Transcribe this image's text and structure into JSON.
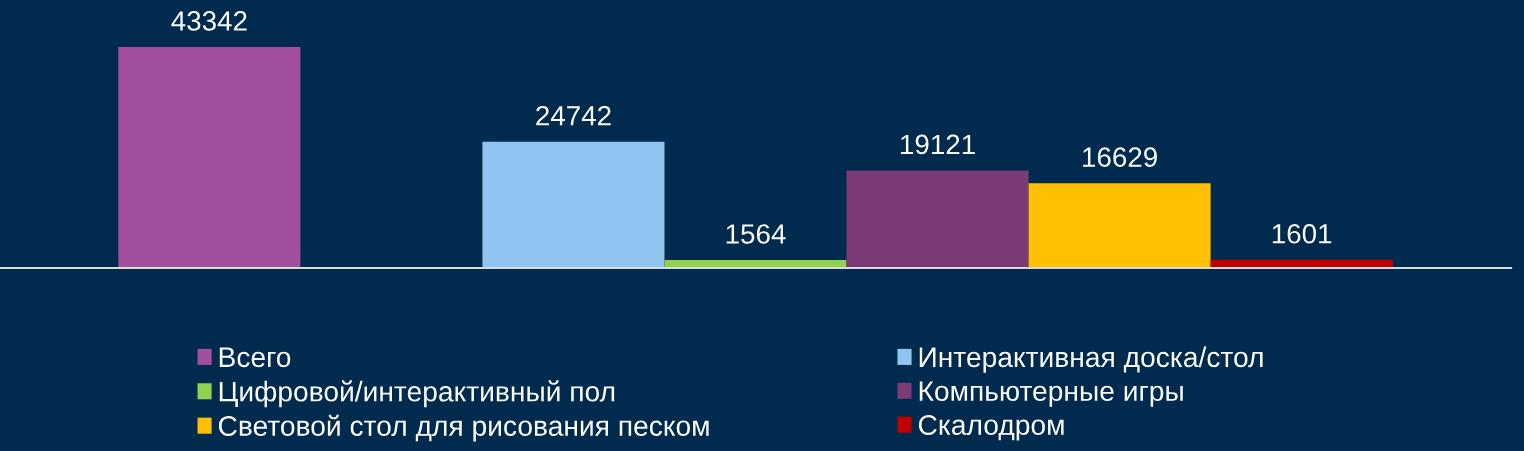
{
  "chart_data": {
    "type": "bar",
    "categories": [
      null
    ],
    "series": [
      {
        "name": "Всего",
        "color": "#a24f9e",
        "values": [
          43342
        ]
      },
      {
        "values": [
          null
        ]
      },
      {
        "name": "Интерактивная доска/стол",
        "color": "#92c4f2",
        "values": [
          24742
        ]
      },
      {
        "name": "Цифровой/интерактивный пол",
        "color": "#92d050",
        "values": [
          1564
        ]
      },
      {
        "name": "Компьютерные игры",
        "color": "#7a3b77",
        "values": [
          19121
        ]
      },
      {
        "name": "Световой стол для рисования песком",
        "color": "#ffc000",
        "values": [
          16629
        ]
      },
      {
        "name": "Скалодром",
        "color": "#c00000",
        "values": [
          1601
        ]
      }
    ],
    "data_labels": true,
    "legend": "bottom"
  }
}
